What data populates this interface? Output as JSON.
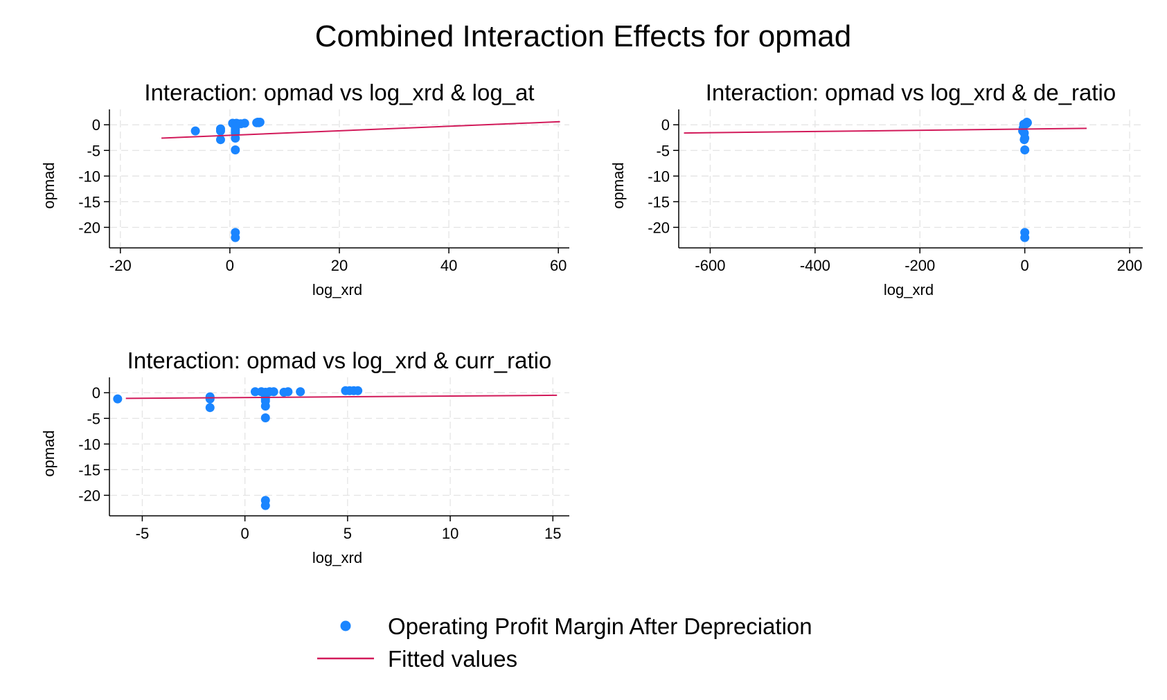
{
  "figure": {
    "title": "Combined Interaction Effects for opmad"
  },
  "legend": {
    "position": "bottom",
    "items": [
      {
        "label": "Operating Profit Margin After Depreciation",
        "marker": "dot",
        "color": "#1a85ff"
      },
      {
        "label": "Fitted values",
        "marker": "line",
        "color": "#d21a5a"
      }
    ]
  },
  "colors": {
    "points": "#1a85ff",
    "fit": "#d21a5a",
    "grid": "#e4e4e4",
    "axis": "#000000"
  },
  "chart_data": [
    {
      "type": "scatter",
      "title": "Interaction: opmad vs log_xrd & log_at",
      "xlabel": "log_xrd",
      "ylabel": "opmad",
      "xlim": [
        -22,
        62
      ],
      "ylim": [
        -24,
        3
      ],
      "xticks": [
        -20,
        0,
        20,
        40,
        60
      ],
      "yticks": [
        0,
        -5,
        -10,
        -15,
        -20
      ],
      "grid": true,
      "points": [
        [
          -6.3,
          -1.2
        ],
        [
          -1.7,
          -0.8
        ],
        [
          -1.7,
          -1.2
        ],
        [
          -1.7,
          -2.9
        ],
        [
          0.5,
          0.3
        ],
        [
          0.8,
          0.2
        ],
        [
          1.0,
          0.1
        ],
        [
          1.2,
          0.3
        ],
        [
          1.5,
          0.2
        ],
        [
          2.0,
          0.2
        ],
        [
          2.7,
          0.3
        ],
        [
          1.0,
          -0.5
        ],
        [
          1.0,
          -0.9
        ],
        [
          1.0,
          -1.2
        ],
        [
          1.0,
          -1.6
        ],
        [
          1.0,
          -2.6
        ],
        [
          1.0,
          -4.9
        ],
        [
          1.0,
          -21.0
        ],
        [
          1.0,
          -22.0
        ],
        [
          4.9,
          0.4
        ],
        [
          5.1,
          0.5
        ],
        [
          5.3,
          0.4
        ],
        [
          5.5,
          0.5
        ]
      ],
      "fit": [
        [
          -12.5,
          -2.6
        ],
        [
          60.3,
          0.6
        ]
      ]
    },
    {
      "type": "scatter",
      "title": "Interaction: opmad vs log_xrd & de_ratio",
      "xlabel": "log_xrd",
      "ylabel": "opmad",
      "xlim": [
        -660,
        225
      ],
      "ylim": [
        -24,
        3
      ],
      "xticks": [
        -600,
        -400,
        -200,
        0,
        200
      ],
      "yticks": [
        0,
        -5,
        -10,
        -15,
        -20
      ],
      "grid": true,
      "points": [
        [
          -2,
          0.1
        ],
        [
          2,
          0.3
        ],
        [
          4,
          0.5
        ],
        [
          5,
          0.4
        ],
        [
          3,
          0.2
        ],
        [
          -3,
          -0.6
        ],
        [
          -4,
          -1.2
        ],
        [
          -1,
          -1.6
        ],
        [
          0,
          -2.6
        ],
        [
          -1,
          -2.9
        ],
        [
          0,
          -4.9
        ],
        [
          0,
          -21.0
        ],
        [
          0,
          -22.0
        ]
      ],
      "fit": [
        [
          -650,
          -1.6
        ],
        [
          118,
          -0.7
        ]
      ]
    },
    {
      "type": "scatter",
      "title": "Interaction: opmad vs log_xrd & curr_ratio",
      "xlabel": "log_xrd",
      "ylabel": "opmad",
      "xlim": [
        -6.6,
        15.8
      ],
      "ylim": [
        -24,
        3
      ],
      "xticks": [
        -5,
        0,
        5,
        10,
        15
      ],
      "yticks": [
        0,
        -5,
        -10,
        -15,
        -20
      ],
      "grid": true,
      "points": [
        [
          -6.2,
          -1.2
        ],
        [
          -1.7,
          -0.8
        ],
        [
          -1.7,
          -1.2
        ],
        [
          -1.7,
          -2.9
        ],
        [
          0.5,
          0.2
        ],
        [
          0.8,
          0.2
        ],
        [
          1.0,
          0.1
        ],
        [
          1.2,
          0.2
        ],
        [
          1.4,
          0.2
        ],
        [
          1.9,
          0.1
        ],
        [
          2.1,
          0.2
        ],
        [
          2.7,
          0.2
        ],
        [
          1.0,
          -0.6
        ],
        [
          1.0,
          -1.2
        ],
        [
          1.0,
          -1.6
        ],
        [
          1.0,
          -2.6
        ],
        [
          1.0,
          -4.9
        ],
        [
          1.0,
          -21.0
        ],
        [
          1.0,
          -22.0
        ],
        [
          4.9,
          0.4
        ],
        [
          5.1,
          0.4
        ],
        [
          5.3,
          0.4
        ],
        [
          5.5,
          0.4
        ]
      ],
      "fit": [
        [
          -5.8,
          -1.1
        ],
        [
          15.2,
          -0.5
        ]
      ]
    }
  ]
}
